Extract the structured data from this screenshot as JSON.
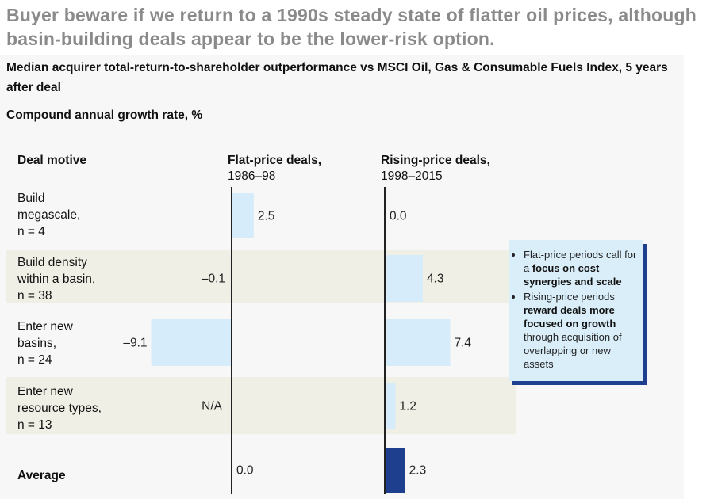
{
  "headline": "Buyer beware if we return to a 1990s steady state of flatter oil prices, although basin-building deals appear to be the lower-risk option.",
  "subtitle": "Median acquirer total-return-to-shareholder outperformance vs MSCI Oil, Gas & Consumable Fuels Index, 5 years after deal",
  "footnote_mark": "1",
  "unit_label": "Compound annual growth rate, %",
  "colors": {
    "light_bar": "#d6ecfa",
    "average_bar": "#1d3f8e",
    "axis": "#222222",
    "band": "#f0efe5",
    "note_bg": "#d9eef9",
    "note_shadow": "#1d3f8e"
  },
  "chart_data": {
    "type": "bar",
    "orientation": "horizontal",
    "row_header": "Deal motive",
    "categories": [
      [
        "Build",
        "megascale,",
        "n = 4"
      ],
      [
        "Build density",
        "within a basin,",
        "n = 38"
      ],
      [
        "Enter new",
        "basins,",
        "n = 24"
      ],
      [
        "Enter new",
        "resource types,",
        "n = 13"
      ],
      [
        "Average"
      ]
    ],
    "series": [
      {
        "name": "Flat-price deals,",
        "period": "1986–98",
        "values": [
          2.5,
          -0.1,
          -9.1,
          null,
          0.0
        ],
        "labels": [
          "2.5",
          "–0.1",
          "–9.1",
          "N/A",
          "0.0"
        ]
      },
      {
        "name": "Rising-price deals,",
        "period": "1998–2015",
        "values": [
          0.0,
          4.3,
          7.4,
          1.2,
          2.3
        ],
        "labels": [
          "0.0",
          "4.3",
          "7.4",
          "1.2",
          "2.3"
        ]
      }
    ],
    "highlight_row": "Average"
  },
  "note": {
    "item1_plain": "Flat-price periods call for a ",
    "item1_bold": "focus on cost synergies and scale",
    "item2_plain_a": "Rising-price periods ",
    "item2_bold": "reward deals more focused on growth",
    "item2_plain_b": " through acquisition of overlapping or new assets"
  }
}
